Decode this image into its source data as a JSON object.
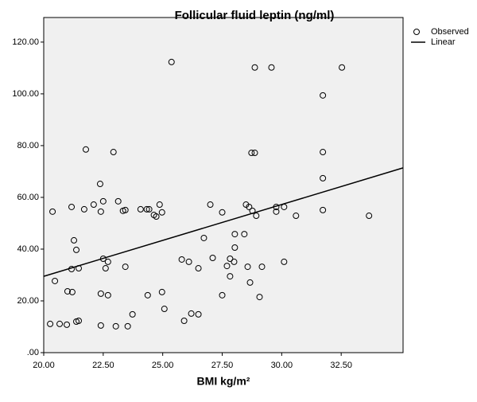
{
  "chart_data": {
    "type": "scatter",
    "title": "Follicular fluid leptin (ng/ml)",
    "x_label": "BMI  kg/m²",
    "xlim": [
      20,
      35.1
    ],
    "ylim": [
      0,
      129.5
    ],
    "xticks": [
      {
        "value": 20,
        "label": "20.00"
      },
      {
        "value": 22.5,
        "label": "22.50"
      },
      {
        "value": 25,
        "label": "25.00"
      },
      {
        "value": 27.5,
        "label": "27.50"
      },
      {
        "value": 30,
        "label": "30.00"
      },
      {
        "value": 32.5,
        "label": "32.50"
      }
    ],
    "yticks": [
      {
        "value": 0,
        "label": ".00"
      },
      {
        "value": 20,
        "label": "20.00"
      },
      {
        "value": 40,
        "label": "40.00"
      },
      {
        "value": 60,
        "label": "60.00"
      },
      {
        "value": 80,
        "label": "80.00"
      },
      {
        "value": 100,
        "label": "100.00"
      },
      {
        "value": 120,
        "label": "120.00"
      }
    ],
    "series": [
      {
        "name": "Observed",
        "color": "#000000",
        "x": [
          20.27,
          20.37,
          20.47,
          20.67,
          20.97,
          21.0,
          21.17,
          21.17,
          21.2,
          21.27,
          21.37,
          21.37,
          21.47,
          21.47,
          21.7,
          21.77,
          22.1,
          22.37,
          22.4,
          22.4,
          22.4,
          22.5,
          22.5,
          22.6,
          22.7,
          22.7,
          22.93,
          23.03,
          23.13,
          23.33,
          23.43,
          23.43,
          23.53,
          23.73,
          24.07,
          24.33,
          24.37,
          24.43,
          24.63,
          24.73,
          24.87,
          24.97,
          24.97,
          25.07,
          25.37,
          25.8,
          25.9,
          26.1,
          26.2,
          26.5,
          26.5,
          26.73,
          27.0,
          27.1,
          27.5,
          27.5,
          27.7,
          27.83,
          27.83,
          28.0,
          28.03,
          28.03,
          28.43,
          28.5,
          28.57,
          28.63,
          28.67,
          28.73,
          28.77,
          28.87,
          28.87,
          28.93,
          29.07,
          29.17,
          29.57,
          29.77,
          29.77,
          30.1,
          30.1,
          30.6,
          31.73,
          31.73,
          31.73,
          31.73,
          32.53,
          33.67
        ],
        "values": [
          11.1,
          54.5,
          27.7,
          11.1,
          10.8,
          23.7,
          56.3,
          32.3,
          23.4,
          43.4,
          39.7,
          12.0,
          12.3,
          32.6,
          55.4,
          78.5,
          57.2,
          65.2,
          54.5,
          22.8,
          10.5,
          58.5,
          36.3,
          32.6,
          35.1,
          22.2,
          77.5,
          10.2,
          58.5,
          54.8,
          55.1,
          33.2,
          10.2,
          14.8,
          55.4,
          55.4,
          22.2,
          55.4,
          53.2,
          52.6,
          57.2,
          54.2,
          23.4,
          16.9,
          112.3,
          36.0,
          12.3,
          35.1,
          15.1,
          32.6,
          14.8,
          44.3,
          57.2,
          36.6,
          54.2,
          22.2,
          33.5,
          29.5,
          36.3,
          35.1,
          40.6,
          45.8,
          45.8,
          57.2,
          33.2,
          56.3,
          27.1,
          77.2,
          54.8,
          77.2,
          110.2,
          52.9,
          21.5,
          33.2,
          110.2,
          54.5,
          56.3,
          56.3,
          35.1,
          52.9,
          99.4,
          77.5,
          67.4,
          55.1,
          110.2,
          52.9
        ]
      },
      {
        "name": "Linear",
        "color": "#000000",
        "x": [
          20,
          35.1
        ],
        "values": [
          29.5,
          71.4
        ]
      }
    ]
  }
}
